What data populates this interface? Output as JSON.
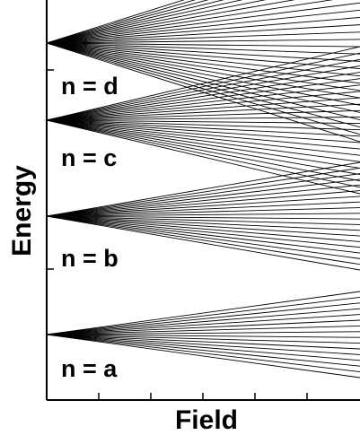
{
  "figure": {
    "y_axis_label": "Energy",
    "x_axis_label": "Field",
    "manifolds": [
      {
        "label": "n = a",
        "lines": 16
      },
      {
        "label": "n = b",
        "lines": 20
      },
      {
        "label": "n = c",
        "lines": 24
      },
      {
        "label": "n = d",
        "lines": 28
      }
    ],
    "line_color": "#000000",
    "background_color": "#ffffff"
  }
}
